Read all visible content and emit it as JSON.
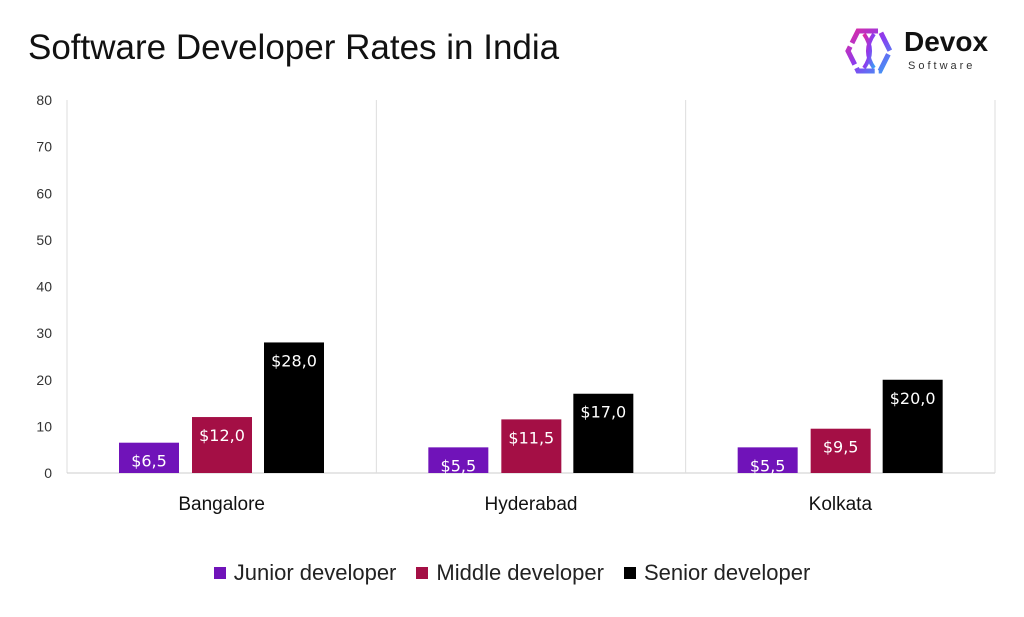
{
  "chart_data": {
    "type": "bar",
    "title": "Software Developer Rates in India",
    "categories": [
      "Bangalore",
      "Hyderabad",
      "Kolkata"
    ],
    "series": [
      {
        "name": "Junior developer",
        "values": [
          6.5,
          5.5,
          5.5
        ],
        "labels": [
          "$6,5",
          "$5,5",
          "$5,5"
        ],
        "color": "#7013b9"
      },
      {
        "name": "Middle developer",
        "values": [
          12.0,
          11.5,
          9.5
        ],
        "labels": [
          "$12,0",
          "$11,5",
          "$9,5"
        ],
        "color": "#a40f45"
      },
      {
        "name": "Senior developer",
        "values": [
          28.0,
          17.0,
          20.0
        ],
        "labels": [
          "$28,0",
          "$17,0",
          "$20,0"
        ],
        "color": "#000000"
      }
    ],
    "ylim": [
      0,
      80
    ],
    "yticks": [
      0,
      10,
      20,
      30,
      40,
      50,
      60,
      70,
      80
    ],
    "xlabel": "",
    "ylabel": "",
    "grid": false,
    "legend": "bottom"
  },
  "logo": {
    "name": "Devox",
    "sub": "Software"
  }
}
